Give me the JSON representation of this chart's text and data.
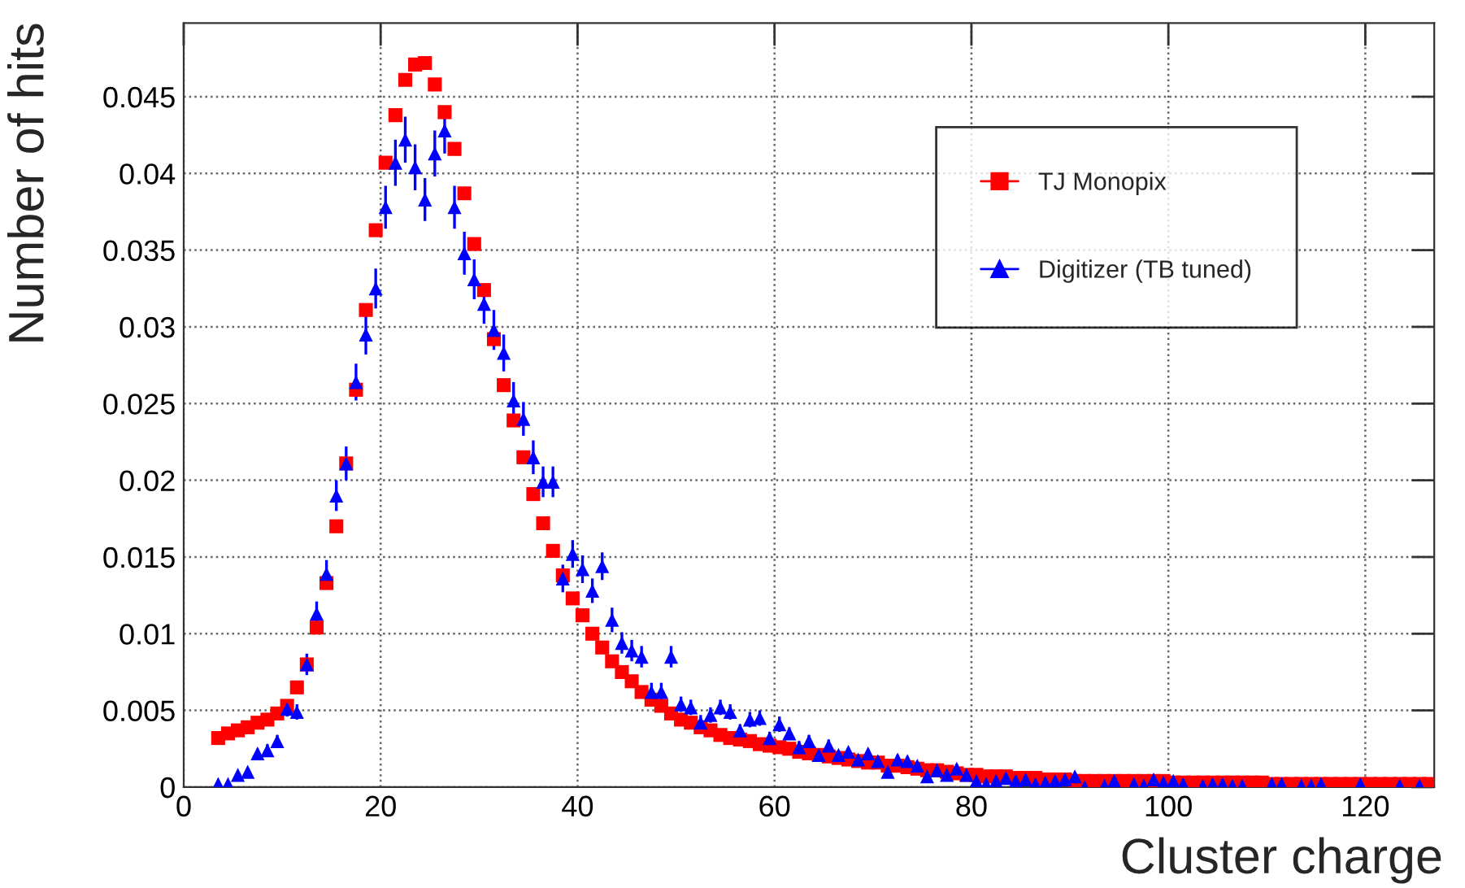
{
  "chart_data": {
    "type": "scatter",
    "xlabel": "Cluster charge",
    "ylabel": "Number of hits",
    "xlim": [
      0,
      127
    ],
    "xticks": [
      0,
      20,
      40,
      60,
      80,
      100,
      120
    ],
    "ylim": [
      0,
      0.0498
    ],
    "yticks": [
      0,
      0.005,
      0.01,
      0.015,
      0.02,
      0.025,
      0.03,
      0.035,
      0.04,
      0.045
    ],
    "grid": true,
    "legend": "top right",
    "series": [
      {
        "name": "TJ Monopix",
        "color": "#ff0000",
        "marker": "square",
        "x": [
          3.5,
          4.5,
          5.5,
          6.5,
          7.5,
          8.5,
          9.5,
          10.5,
          11.5,
          12.5,
          13.5,
          14.5,
          15.5,
          16.5,
          17.5,
          18.5,
          19.5,
          20.5,
          21.5,
          22.5,
          23.5,
          24.5,
          25.5,
          26.5,
          27.5,
          28.5,
          29.5,
          30.5,
          31.5,
          32.5,
          33.5,
          34.5,
          35.5,
          36.5,
          37.5,
          38.5,
          39.5,
          40.5,
          41.5,
          42.5,
          43.5,
          44.5,
          45.5,
          46.5,
          47.5,
          48.5,
          49.5,
          50.5,
          51.5,
          52.5,
          53.5,
          54.5,
          55.5,
          56.5,
          57.5,
          58.5,
          59.5,
          60.5,
          61.5,
          62.5,
          63.5,
          64.5,
          65.5,
          66.5,
          67.5,
          68.5,
          69.5,
          70.5,
          71.5,
          72.5,
          73.5,
          74.5,
          75.5,
          76.5,
          77.5,
          78.5,
          79.5,
          80.5,
          81.5,
          82.5,
          83.5,
          84.5,
          85.5,
          86.5,
          87.5,
          88.5,
          89.5,
          90.5,
          91.5,
          92.5,
          93.5,
          94.5,
          95.5,
          96.5,
          97.5,
          98.5,
          99.5,
          100.5,
          101.5,
          102.5,
          103.5,
          104.5,
          105.5,
          106.5,
          107.5,
          108.5,
          109.5,
          110.5,
          111.5,
          112.5,
          113.5,
          114.5,
          115.5,
          116.5,
          117.5,
          118.5,
          119.5,
          120.5,
          121.5,
          122.5,
          123.5,
          124.5,
          125.5,
          126.5
        ],
        "values": [
          0.0032,
          0.0035,
          0.0037,
          0.0039,
          0.0042,
          0.0044,
          0.0048,
          0.0053,
          0.0065,
          0.008,
          0.0104,
          0.0133,
          0.017,
          0.0211,
          0.0259,
          0.0311,
          0.0363,
          0.0407,
          0.0438,
          0.0461,
          0.0471,
          0.0472,
          0.0458,
          0.044,
          0.0416,
          0.0387,
          0.0354,
          0.0324,
          0.0292,
          0.0262,
          0.0239,
          0.0215,
          0.0191,
          0.0172,
          0.0154,
          0.0138,
          0.0123,
          0.0112,
          0.01,
          0.0091,
          0.0082,
          0.0075,
          0.0069,
          0.0062,
          0.0057,
          0.0053,
          0.0048,
          0.0044,
          0.0042,
          0.0039,
          0.0037,
          0.0034,
          0.0032,
          0.0031,
          0.003,
          0.0028,
          0.0027,
          0.0026,
          0.0025,
          0.0023,
          0.0022,
          0.0021,
          0.002,
          0.0019,
          0.0018,
          0.0017,
          0.0016,
          0.0016,
          0.0014,
          0.0014,
          0.0013,
          0.0012,
          0.0011,
          0.0011,
          0.001,
          0.0009,
          0.0008,
          0.0008,
          0.0007,
          0.0007,
          0.0007,
          0.0006,
          0.0006,
          0.0006,
          0.0005,
          0.0005,
          0.0005,
          0.0004,
          0.0004,
          0.0004,
          0.0004,
          0.0004,
          0.0004,
          0.0004,
          0.0004,
          0.0004,
          0.0004,
          0.0003,
          0.0003,
          0.0003,
          0.0003,
          0.0003,
          0.0003,
          0.0003,
          0.0003,
          0.0003,
          0.0003,
          0.0002,
          0.0002,
          0.0002,
          0.0002,
          0.0002,
          0.0002,
          0.0002,
          0.0002,
          0.0002,
          0.0002,
          0.0002,
          0.0002,
          0.0002,
          0.0002,
          0.0002,
          0.0002,
          0.0002
        ]
      },
      {
        "name": "Digitizer (TB tuned)",
        "color": "#0000ff",
        "marker": "triangle",
        "x": [
          3.5,
          4.5,
          5.5,
          6.5,
          7.5,
          8.5,
          9.5,
          10.5,
          11.5,
          12.5,
          13.5,
          14.5,
          15.5,
          16.5,
          17.5,
          18.5,
          19.5,
          20.5,
          21.5,
          22.5,
          23.5,
          24.5,
          25.5,
          26.5,
          27.5,
          28.5,
          29.5,
          30.5,
          31.5,
          32.5,
          33.5,
          34.5,
          35.5,
          36.5,
          37.5,
          38.5,
          39.5,
          40.5,
          41.5,
          42.5,
          43.5,
          44.5,
          45.5,
          46.5,
          47.5,
          48.5,
          49.5,
          50.5,
          51.5,
          52.5,
          53.5,
          54.5,
          55.5,
          56.5,
          57.5,
          58.5,
          59.5,
          60.5,
          61.5,
          62.5,
          63.5,
          64.5,
          65.5,
          66.5,
          67.5,
          68.5,
          69.5,
          70.5,
          71.5,
          72.5,
          73.5,
          74.5,
          75.5,
          76.5,
          77.5,
          78.5,
          79.5,
          80.5,
          81.5,
          82.5,
          83.5,
          84.5,
          85.5,
          86.5,
          87.5,
          88.5,
          89.5,
          90.5,
          91.5,
          93.5,
          94.5,
          96.5,
          97.5,
          98.5,
          99.5,
          100.5,
          101.5,
          103.5,
          104.5,
          105.5,
          106.5,
          107.5,
          110.5,
          111.5,
          113.5,
          114.5,
          115.5,
          119.5,
          123.5,
          125.5
        ],
        "values": [
          0.0002,
          0.0002,
          0.0008,
          0.001,
          0.0022,
          0.0024,
          0.003,
          0.0051,
          0.0049,
          0.008,
          0.0113,
          0.0139,
          0.019,
          0.0211,
          0.0264,
          0.0295,
          0.0325,
          0.0378,
          0.0407,
          0.0422,
          0.0404,
          0.0383,
          0.0413,
          0.0428,
          0.0378,
          0.0348,
          0.0331,
          0.0315,
          0.0298,
          0.0283,
          0.0252,
          0.024,
          0.0215,
          0.0199,
          0.0199,
          0.0136,
          0.0152,
          0.0142,
          0.0128,
          0.0144,
          0.0109,
          0.0094,
          0.0089,
          0.0085,
          0.0062,
          0.0062,
          0.0085,
          0.0054,
          0.0052,
          0.0042,
          0.0047,
          0.0052,
          0.0049,
          0.0037,
          0.0044,
          0.0045,
          0.0032,
          0.0041,
          0.0035,
          0.0026,
          0.003,
          0.0021,
          0.0027,
          0.0021,
          0.0023,
          0.0018,
          0.0022,
          0.0017,
          0.001,
          0.0018,
          0.0017,
          0.0014,
          0.0007,
          0.0011,
          0.0008,
          0.0012,
          0.0008,
          0.0004,
          0.0002,
          0.0004,
          0.0006,
          0.0004,
          0.0005,
          0.0002,
          0.0003,
          0.0004,
          0.0005,
          0.0007,
          0.0,
          0.0001,
          0.0004,
          0.0002,
          0.0001,
          0.0005,
          0.0003,
          0.0004,
          0.0002,
          0.0001,
          0.0002,
          0.0002,
          0.0001,
          0.0001,
          0.0002,
          0.0002,
          0.0001,
          0.0001,
          0.0002,
          0.0002,
          0.0001,
          0.0001
        ],
        "errors": [
          0.0001,
          0.0001,
          0.0002,
          0.0002,
          0.0003,
          0.0004,
          0.0004,
          0.0005,
          0.0005,
          0.0007,
          0.0008,
          0.0009,
          0.001,
          0.0011,
          0.0012,
          0.0013,
          0.0013,
          0.0014,
          0.0015,
          0.0015,
          0.0015,
          0.0014,
          0.0015,
          0.0015,
          0.0014,
          0.0014,
          0.0013,
          0.0013,
          0.0013,
          0.0012,
          0.0012,
          0.0011,
          0.0011,
          0.001,
          0.001,
          0.0009,
          0.0009,
          0.0009,
          0.0008,
          0.0009,
          0.0008,
          0.0007,
          0.0007,
          0.0007,
          0.0006,
          0.0006,
          0.0007,
          0.0005,
          0.0005,
          0.0005,
          0.0005,
          0.0005,
          0.0005,
          0.0004,
          0.0005,
          0.0005,
          0.0004,
          0.0005,
          0.0004,
          0.0004,
          0.0004,
          0.0003,
          0.0004,
          0.0003,
          0.0003,
          0.0003,
          0.0003,
          0.0003,
          0.0002,
          0.0003,
          0.0003,
          0.0003,
          0.0002,
          0.0002,
          0.0002,
          0.0003,
          0.0002,
          0.0001,
          0.0001,
          0.0001,
          0.0001,
          0.0001,
          0.0001,
          0.0001,
          0.0001,
          0.0001,
          0.0001,
          0.0001,
          0.0001,
          0.0001,
          0.0001,
          0.0001,
          0.0001,
          0.0001,
          0.0001,
          0.0001,
          0.0001,
          0.0001,
          0.0001,
          0.0001,
          0.0001,
          0.0001,
          0.0001,
          0.0001,
          0.0001,
          0.0001,
          0.0001,
          0.0001,
          0.0001,
          0.0001
        ]
      }
    ]
  }
}
